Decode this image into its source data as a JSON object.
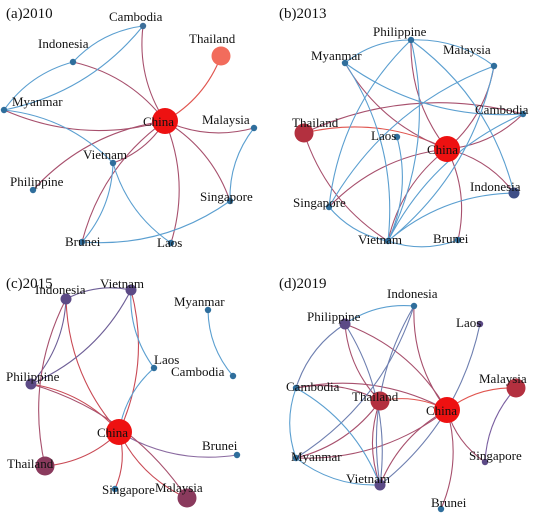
{
  "panels": [
    {
      "id": "a",
      "label": "(a)2010",
      "nodes": [
        {
          "id": "Cambodia",
          "label": "Cambodia",
          "color": "#3d6f9a",
          "size": "small"
        },
        {
          "id": "Indonesia",
          "label": "Indonesia",
          "color": "#2f6e9c",
          "size": "small"
        },
        {
          "id": "Thailand",
          "label": "Thailand",
          "color": "#f26c5c",
          "size": "large"
        },
        {
          "id": "Myanmar",
          "label": "Myanmar",
          "color": "#2f6e9c",
          "size": "small"
        },
        {
          "id": "China",
          "label": "China",
          "color": "#ee1111",
          "size": "xlarge"
        },
        {
          "id": "Malaysia",
          "label": "Malaysia",
          "color": "#2f6e9c",
          "size": "small"
        },
        {
          "id": "Vietnam",
          "label": "Vietnam",
          "color": "#2f6e9c",
          "size": "small"
        },
        {
          "id": "Philippine",
          "label": "Philippine",
          "color": "#2f6e9c",
          "size": "small"
        },
        {
          "id": "Singapore",
          "label": "Singapore",
          "color": "#2f6e9c",
          "size": "small"
        },
        {
          "id": "Brunei",
          "label": "Brunei",
          "color": "#2f6e9c",
          "size": "small"
        },
        {
          "id": "Laos",
          "label": "Laos",
          "color": "#2f6e9c",
          "size": "small"
        }
      ],
      "edges": [
        {
          "source": "China",
          "target": "Thailand",
          "color": "#e0554f"
        },
        {
          "source": "China",
          "target": "Cambodia",
          "color": "#a7506d"
        },
        {
          "source": "China",
          "target": "Indonesia",
          "color": "#a7506d"
        },
        {
          "source": "China",
          "target": "Myanmar",
          "color": "#a7506d"
        },
        {
          "source": "China",
          "target": "Malaysia",
          "color": "#a7506d"
        },
        {
          "source": "China",
          "target": "Vietnam",
          "color": "#a7506d"
        },
        {
          "source": "China",
          "target": "Philippine",
          "color": "#a7506d"
        },
        {
          "source": "China",
          "target": "Singapore",
          "color": "#a7506d"
        },
        {
          "source": "China",
          "target": "Brunei",
          "color": "#a7506d"
        },
        {
          "source": "China",
          "target": "Laos",
          "color": "#a7506d"
        },
        {
          "source": "Cambodia",
          "target": "Indonesia",
          "color": "#5b9fd0"
        },
        {
          "source": "Cambodia",
          "target": "Myanmar",
          "color": "#5b9fd0"
        },
        {
          "source": "Indonesia",
          "target": "Myanmar",
          "color": "#5b9fd0"
        },
        {
          "source": "Myanmar",
          "target": "Vietnam",
          "color": "#5b9fd0"
        },
        {
          "source": "Vietnam",
          "target": "Laos",
          "color": "#5b9fd0"
        },
        {
          "source": "Vietnam",
          "target": "Brunei",
          "color": "#5b9fd0"
        },
        {
          "source": "Malaysia",
          "target": "Singapore",
          "color": "#5b9fd0"
        },
        {
          "source": "Singapore",
          "target": "Brunei",
          "color": "#5b9fd0"
        }
      ]
    },
    {
      "id": "b",
      "label": "(b)2013",
      "nodes": [
        {
          "id": "Philippine",
          "label": "Philippine",
          "color": "#2f6e9c",
          "size": "small"
        },
        {
          "id": "Malaysia",
          "label": "Malaysia",
          "color": "#2f6e9c",
          "size": "small"
        },
        {
          "id": "Myanmar",
          "label": "Myanmar",
          "color": "#2f6e9c",
          "size": "small"
        },
        {
          "id": "Thailand",
          "label": "Thailand",
          "color": "#b3303f",
          "size": "large"
        },
        {
          "id": "Cambodia",
          "label": "Cambodia",
          "color": "#2f6e9c",
          "size": "small"
        },
        {
          "id": "Laos",
          "label": "Laos",
          "color": "#2f6e9c",
          "size": "small"
        },
        {
          "id": "China",
          "label": "China",
          "color": "#ee1111",
          "size": "xlarge"
        },
        {
          "id": "Indonesia",
          "label": "Indonesia",
          "color": "#3e4e86",
          "size": "medium"
        },
        {
          "id": "Singapore",
          "label": "Singapore",
          "color": "#2f6e9c",
          "size": "small"
        },
        {
          "id": "Vietnam",
          "label": "Vietnam",
          "color": "#2f6e9c",
          "size": "small"
        },
        {
          "id": "Brunei",
          "label": "Brunei",
          "color": "#2f6e9c",
          "size": "small"
        }
      ],
      "edges": [
        {
          "source": "China",
          "target": "Thailand",
          "color": "#e0554f"
        },
        {
          "source": "China",
          "target": "Philippine",
          "color": "#a7506d"
        },
        {
          "source": "China",
          "target": "Malaysia",
          "color": "#a7506d"
        },
        {
          "source": "China",
          "target": "Myanmar",
          "color": "#a7506d"
        },
        {
          "source": "China",
          "target": "Cambodia",
          "color": "#a7506d"
        },
        {
          "source": "China",
          "target": "Indonesia",
          "color": "#a7506d"
        },
        {
          "source": "China",
          "target": "Vietnam",
          "color": "#a7506d"
        },
        {
          "source": "China",
          "target": "Brunei",
          "color": "#a7506d"
        },
        {
          "source": "China",
          "target": "Singapore",
          "color": "#a7506d"
        },
        {
          "source": "Thailand",
          "target": "Cambodia",
          "color": "#a7506d"
        },
        {
          "source": "Thailand",
          "target": "Vietnam",
          "color": "#a7506d"
        },
        {
          "source": "Philippine",
          "target": "Malaysia",
          "color": "#5b9fd0"
        },
        {
          "source": "Philippine",
          "target": "Myanmar",
          "color": "#5b9fd0"
        },
        {
          "source": "Philippine",
          "target": "Vietnam",
          "color": "#5b9fd0"
        },
        {
          "source": "Philippine",
          "target": "Singapore",
          "color": "#5b9fd0"
        },
        {
          "source": "Philippine",
          "target": "Indonesia",
          "color": "#5b9fd0"
        },
        {
          "source": "Malaysia",
          "target": "Singapore",
          "color": "#5b9fd0"
        },
        {
          "source": "Malaysia",
          "target": "Vietnam",
          "color": "#5b9fd0"
        },
        {
          "source": "Myanmar",
          "target": "Cambodia",
          "color": "#5b9fd0"
        },
        {
          "source": "Myanmar",
          "target": "Vietnam",
          "color": "#5b9fd0"
        },
        {
          "source": "Cambodia",
          "target": "Vietnam",
          "color": "#5b9fd0"
        },
        {
          "source": "Laos",
          "target": "Vietnam",
          "color": "#5b9fd0"
        },
        {
          "source": "Vietnam",
          "target": "Brunei",
          "color": "#5b9fd0"
        },
        {
          "source": "Vietnam",
          "target": "Indonesia",
          "color": "#5b9fd0"
        },
        {
          "source": "Singapore",
          "target": "Vietnam",
          "color": "#5b9fd0"
        }
      ]
    },
    {
      "id": "c",
      "label": "(c)2015",
      "nodes": [
        {
          "id": "Vietnam",
          "label": "Vietnam",
          "color": "#5c4a86",
          "size": "medium"
        },
        {
          "id": "Indonesia",
          "label": "Indonesia",
          "color": "#5c4a86",
          "size": "medium"
        },
        {
          "id": "Myanmar",
          "label": "Myanmar",
          "color": "#2f6e9c",
          "size": "small"
        },
        {
          "id": "Laos",
          "label": "Laos",
          "color": "#2f6e9c",
          "size": "small"
        },
        {
          "id": "Cambodia",
          "label": "Cambodia",
          "color": "#2f6e9c",
          "size": "small"
        },
        {
          "id": "Philippine",
          "label": "Philippine",
          "color": "#5c4a86",
          "size": "medium"
        },
        {
          "id": "China",
          "label": "China",
          "color": "#ee1111",
          "size": "xlarge"
        },
        {
          "id": "Brunei",
          "label": "Brunei",
          "color": "#2f6e9c",
          "size": "small"
        },
        {
          "id": "Thailand",
          "label": "Thailand",
          "color": "#8a3a5d",
          "size": "large"
        },
        {
          "id": "Singapore",
          "label": "Singapore",
          "color": "#2f6e9c",
          "size": "small"
        },
        {
          "id": "Malaysia",
          "label": "Malaysia",
          "color": "#8a3a5d",
          "size": "large"
        }
      ],
      "edges": [
        {
          "source": "China",
          "target": "Vietnam",
          "color": "#c94a55"
        },
        {
          "source": "China",
          "target": "Indonesia",
          "color": "#c94a55"
        },
        {
          "source": "China",
          "target": "Philippine",
          "color": "#c94a55"
        },
        {
          "source": "China",
          "target": "Thailand",
          "color": "#c94a55"
        },
        {
          "source": "China",
          "target": "Malaysia",
          "color": "#c94a55"
        },
        {
          "source": "China",
          "target": "Singapore",
          "color": "#c94a55"
        },
        {
          "source": "China",
          "target": "Brunei",
          "color": "#8a6aa0"
        },
        {
          "source": "China",
          "target": "Laos",
          "color": "#5b9fd0"
        },
        {
          "source": "Vietnam",
          "target": "Indonesia",
          "color": "#6e5f97"
        },
        {
          "source": "Vietnam",
          "target": "Philippine",
          "color": "#6e5f97"
        },
        {
          "source": "Vietnam",
          "target": "Laos",
          "color": "#5b9fd0"
        },
        {
          "source": "Indonesia",
          "target": "Philippine",
          "color": "#6e5f97"
        },
        {
          "source": "Indonesia",
          "target": "Thailand",
          "color": "#a7506d"
        },
        {
          "source": "Philippine",
          "target": "Malaysia",
          "color": "#a7506d"
        },
        {
          "source": "Myanmar",
          "target": "Cambodia",
          "color": "#5b9fd0"
        }
      ]
    },
    {
      "id": "d",
      "label": "(d)2019",
      "nodes": [
        {
          "id": "Indonesia",
          "label": "Indonesia",
          "color": "#2f6e9c",
          "size": "small"
        },
        {
          "id": "Philippine",
          "label": "Philippine",
          "color": "#5c4a86",
          "size": "medium"
        },
        {
          "id": "Laos",
          "label": "Laos",
          "color": "#5c4a86",
          "size": "small"
        },
        {
          "id": "Cambodia",
          "label": "Cambodia",
          "color": "#2f6e9c",
          "size": "small"
        },
        {
          "id": "Thailand",
          "label": "Thailand",
          "color": "#b3303f",
          "size": "large"
        },
        {
          "id": "Malaysia",
          "label": "Malaysia",
          "color": "#b3303f",
          "size": "large"
        },
        {
          "id": "China",
          "label": "China",
          "color": "#ee1111",
          "size": "xlarge"
        },
        {
          "id": "Myanmar",
          "label": "Myanmar",
          "color": "#2f6e9c",
          "size": "small"
        },
        {
          "id": "Singapore",
          "label": "Singapore",
          "color": "#5c4a86",
          "size": "small"
        },
        {
          "id": "Vietnam",
          "label": "Vietnam",
          "color": "#5c4a86",
          "size": "medium"
        },
        {
          "id": "Brunei",
          "label": "Brunei",
          "color": "#2f6e9c",
          "size": "small"
        }
      ],
      "edges": [
        {
          "source": "China",
          "target": "Thailand",
          "color": "#e0554f"
        },
        {
          "source": "China",
          "target": "Malaysia",
          "color": "#e0554f"
        },
        {
          "source": "China",
          "target": "Philippine",
          "color": "#a7506d"
        },
        {
          "source": "China",
          "target": "Indonesia",
          "color": "#a7506d"
        },
        {
          "source": "China",
          "target": "Cambodia",
          "color": "#a7506d"
        },
        {
          "source": "China",
          "target": "Myanmar",
          "color": "#a7506d"
        },
        {
          "source": "China",
          "target": "Vietnam",
          "color": "#a7506d"
        },
        {
          "source": "China",
          "target": "Brunei",
          "color": "#a7506d"
        },
        {
          "source": "China",
          "target": "Singapore",
          "color": "#a7506d"
        },
        {
          "source": "Thailand",
          "target": "Philippine",
          "color": "#a7506d"
        },
        {
          "source": "Thailand",
          "target": "Cambodia",
          "color": "#a7506d"
        },
        {
          "source": "Thailand",
          "target": "Myanmar",
          "color": "#a7506d"
        },
        {
          "source": "Thailand",
          "target": "Vietnam",
          "color": "#a7506d"
        },
        {
          "source": "Philippine",
          "target": "Indonesia",
          "color": "#5b9fd0"
        },
        {
          "source": "Philippine",
          "target": "Cambodia",
          "color": "#6e7fb0"
        },
        {
          "source": "Philippine",
          "target": "Vietnam",
          "color": "#6e7fb0"
        },
        {
          "source": "Indonesia",
          "target": "Vietnam",
          "color": "#6e7fb0"
        },
        {
          "source": "Indonesia",
          "target": "Myanmar",
          "color": "#6e7fb0"
        },
        {
          "source": "Cambodia",
          "target": "Myanmar",
          "color": "#5b9fd0"
        },
        {
          "source": "Cambodia",
          "target": "Vietnam",
          "color": "#5b9fd0"
        },
        {
          "source": "Myanmar",
          "target": "Vietnam",
          "color": "#5b9fd0"
        },
        {
          "source": "Laos",
          "target": "Vietnam",
          "color": "#6e7fb0"
        },
        {
          "source": "Malaysia",
          "target": "Singapore",
          "color": "#7a5fa0"
        }
      ]
    }
  ]
}
